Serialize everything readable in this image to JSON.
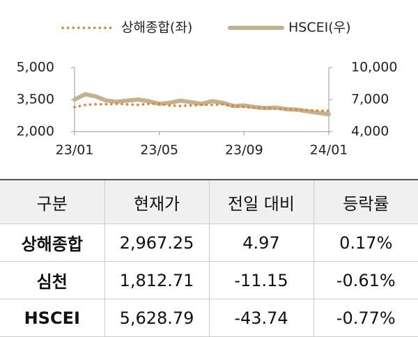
{
  "chart_data": {
    "type": "line",
    "categories": [
      "23/01",
      null,
      null,
      null,
      null,
      null,
      null,
      null,
      "23/05",
      null,
      null,
      null,
      null,
      null,
      null,
      null,
      "23/09",
      null,
      null,
      null,
      null,
      null,
      null,
      null,
      "24/01"
    ],
    "series": [
      {
        "name": "상해종합(좌)",
        "color": "#e87d2a",
        "values": [
          3150,
          3250,
          3280,
          3280,
          3300,
          3270,
          3250,
          3300,
          3300,
          3220,
          3200,
          3230,
          3250,
          3250,
          3280,
          3200,
          3150,
          3120,
          3110,
          3080,
          3050,
          3020,
          3000,
          2980,
          2967
        ]
      },
      {
        "name": "HSCEI(우)",
        "color": "#c4b28f",
        "axis": "y2",
        "values": [
          7000,
          7500,
          7300,
          6900,
          6800,
          6900,
          7000,
          6850,
          6600,
          6700,
          6900,
          6750,
          6600,
          6850,
          6700,
          6400,
          6450,
          6300,
          6200,
          6250,
          6100,
          6050,
          5900,
          5750,
          5629
        ]
      }
    ],
    "ylim": [
      2000,
      5000
    ],
    "yticks": [
      {
        "value": 2000,
        "label": "2,000"
      },
      {
        "value": 3500,
        "label": "3,500"
      },
      {
        "value": 5000,
        "label": "5,000"
      }
    ],
    "y2lim": [
      4000,
      10000
    ],
    "y2ticks": [
      {
        "value": 4000,
        "label": "4,000"
      },
      {
        "value": 7000,
        "label": "7,000"
      },
      {
        "value": 10000,
        "label": "10,000"
      }
    ]
  },
  "table": {
    "header": [
      "구분",
      "현재가",
      "전일 대비",
      "등락률"
    ],
    "rows": [
      [
        "상해종합",
        "2,967.25",
        "4.97",
        "0.17%"
      ],
      [
        "심천",
        "1,812.71",
        "-11.15",
        "-0.61%"
      ],
      [
        "HSCEI",
        "5,628.79",
        "-43.74",
        "-0.77%"
      ]
    ]
  }
}
